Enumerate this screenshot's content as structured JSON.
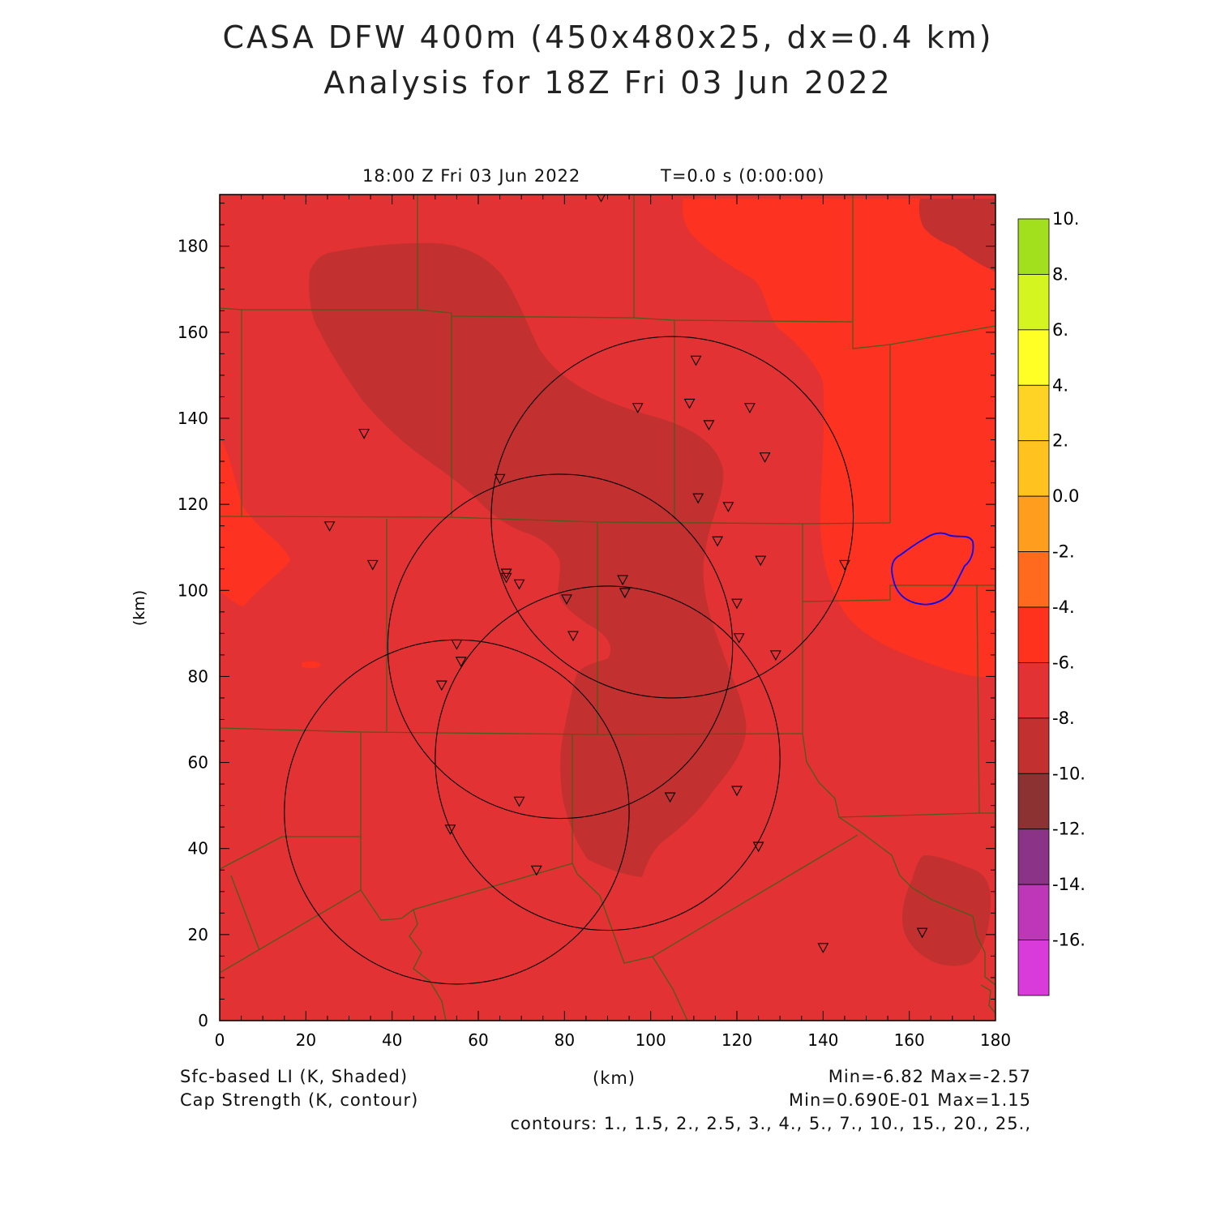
{
  "header": {
    "title_line1": "CASA DFW 400m (450x480x25, dx=0.4 km)",
    "title_line2": "Analysis for 18Z Fri 03 Jun 2022",
    "valid_time": "18:00 Z Fri 03 Jun 2022",
    "forecast_time": "T=0.0 s (0:00:00)"
  },
  "axes": {
    "xlabel": "(km)",
    "ylabel": "(km)",
    "xlim": [
      0,
      180
    ],
    "ylim": [
      0,
      192
    ],
    "xticks": [
      "0",
      "20",
      "40",
      "60",
      "80",
      "100",
      "120",
      "140",
      "160",
      "180"
    ],
    "yticks": [
      "0",
      "20",
      "40",
      "60",
      "80",
      "100",
      "120",
      "140",
      "160",
      "180"
    ]
  },
  "footer": {
    "shaded_field": "Sfc-based LI (K, Shaded)",
    "shaded_minmax": "Min=-6.82 Max=-2.57",
    "contour_field": "Cap Strength (K, contour)",
    "contour_minmax": "Min=0.690E-01 Max=1.15",
    "contours": "contours: 1., 1.5, 2., 2.5, 3., 4., 5., 7., 10., 15., 20., 25.,"
  },
  "colorbar": {
    "labels": [
      "10.",
      "8.",
      "6.",
      "4.",
      "2.",
      "0.0",
      "-2.",
      "-4.",
      "-6.",
      "-8.",
      "-10.",
      "-12.",
      "-14.",
      "-16."
    ],
    "colors": [
      "#a2e01e",
      "#d4f51f",
      "#ffff26",
      "#ffd326",
      "#ffc21e",
      "#ff9e1e",
      "#ff6a1e",
      "#ff321e",
      "#e23234",
      "#c23030",
      "#8c3232",
      "#8b3386",
      "#bd37b8",
      "#d93bdb"
    ]
  },
  "map_colors": {
    "li_minus4_to_minus2": "#fe3220",
    "li_minus6_to_minus4": "#e23234",
    "li_minus8_to_minus6": "#c23030",
    "boundaries": "#4f5a1c",
    "cap_contour": "#0000ff",
    "radar_rings": "#000000"
  },
  "map_content": {
    "radar_range_rings": [
      {
        "center_km": [
          105,
          117
        ],
        "radius_km": 42
      },
      {
        "center_km": [
          79,
          87
        ],
        "radius_km": 40
      },
      {
        "center_km": [
          90,
          61
        ],
        "radius_km": 40
      },
      {
        "center_km": [
          55,
          48.5
        ],
        "radius_km": 40
      }
    ],
    "station_markers_km": [
      [
        88.5,
        191.5
      ],
      [
        110.5,
        153.5
      ],
      [
        97,
        142.5
      ],
      [
        109,
        143.5
      ],
      [
        123,
        142.5
      ],
      [
        113.5,
        138.5
      ],
      [
        126.5,
        131
      ],
      [
        33.5,
        136.5
      ],
      [
        65,
        126
      ],
      [
        111,
        121.5
      ],
      [
        118,
        119.5
      ],
      [
        25.5,
        115
      ],
      [
        115.5,
        111.5
      ],
      [
        125.5,
        107
      ],
      [
        145,
        106
      ],
      [
        35.5,
        106
      ],
      [
        66.5,
        104
      ],
      [
        66.5,
        103
      ],
      [
        69.5,
        101.5
      ],
      [
        93.5,
        102.5
      ],
      [
        94,
        99.5
      ],
      [
        80.5,
        98
      ],
      [
        120,
        97
      ],
      [
        82,
        89.5
      ],
      [
        120.5,
        89
      ],
      [
        55,
        87.5
      ],
      [
        56,
        83.5
      ],
      [
        129,
        85
      ],
      [
        51.5,
        78
      ],
      [
        120,
        53.5
      ],
      [
        69.5,
        51
      ],
      [
        104.5,
        52
      ],
      [
        53.5,
        44.5
      ],
      [
        125,
        40.5
      ],
      [
        73.5,
        35
      ],
      [
        163,
        20.5
      ],
      [
        140,
        17
      ]
    ]
  }
}
